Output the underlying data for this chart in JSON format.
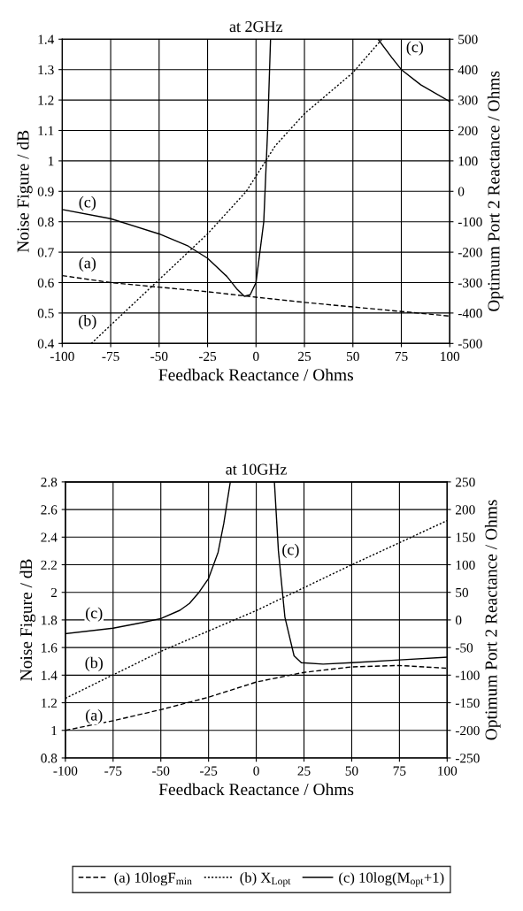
{
  "chart_data": [
    {
      "type": "line",
      "title": "at 2GHz",
      "xlabel": "Feedback Reactance / Ohms",
      "ylabel": "Noise Figure / dB",
      "y2label": "Optimum Port 2 Reactance / Ohms",
      "xlim": [
        -100,
        100
      ],
      "xticks": [
        -100,
        -75,
        -50,
        -25,
        0,
        25,
        50,
        75,
        100
      ],
      "ylim": [
        0.4,
        1.4
      ],
      "yticks": [
        0.4,
        0.5,
        0.6,
        0.7,
        0.8,
        0.9,
        1,
        1.1,
        1.2,
        1.3,
        1.4
      ],
      "y2lim": [
        -500,
        500
      ],
      "y2ticks": [
        -500,
        -400,
        -300,
        -200,
        -100,
        0,
        100,
        200,
        300,
        400,
        500
      ],
      "grid": true,
      "legend": "bottom",
      "series": [
        {
          "name": "(a) 10logF$_{min}$",
          "color": "#000000",
          "line_style": "dashed",
          "x": [
            -100,
            -75,
            -50,
            -25,
            0,
            25,
            50,
            75,
            100
          ],
          "values": [
            0.623,
            0.6,
            0.585,
            0.57,
            0.552,
            0.535,
            0.52,
            0.505,
            0.49
          ]
        },
        {
          "name": "(b) X$_{Lopt}$",
          "color": "#000000",
          "line_style": "dotted",
          "axis": "y2",
          "x": [
            -85,
            -50,
            -25,
            -5,
            0,
            6,
            10,
            25,
            50,
            65
          ],
          "values": [
            -500,
            -290,
            -140,
            0,
            50,
            110,
            150,
            255,
            390,
            500
          ]
        },
        {
          "name": "(c) 10log(M$_{opt}$+1)",
          "color": "#000000",
          "line_style": "solid",
          "x": [
            -100,
            -75,
            -50,
            -35,
            -25,
            -15,
            -10,
            -6,
            -3,
            0,
            2,
            4,
            5,
            6,
            7,
            7.5,
            30,
            63,
            70,
            75,
            85,
            100
          ],
          "values": [
            0.84,
            0.81,
            0.76,
            0.72,
            0.68,
            0.62,
            0.58,
            0.555,
            0.56,
            0.6,
            0.7,
            0.8,
            0.95,
            1.1,
            1.3,
            1.4,
            null,
            1.4,
            1.34,
            1.3,
            1.25,
            1.195
          ]
        }
      ],
      "annotations": [
        {
          "text": "(c)",
          "x": -87,
          "y": 0.86
        },
        {
          "text": "(a)",
          "x": -87,
          "y": 0.66
        },
        {
          "text": "(b)",
          "x": -87,
          "y": 0.47
        },
        {
          "text": "(c)",
          "x": 82,
          "y": 1.37
        }
      ]
    },
    {
      "type": "line",
      "title": "at 10GHz",
      "xlabel": "Feedback Reactance / Ohms",
      "ylabel": "Noise Figure / dB",
      "y2label": "Optimum Port 2 Reactance / Ohms",
      "xlim": [
        -100,
        100
      ],
      "xticks": [
        -100,
        -75,
        -50,
        -25,
        0,
        25,
        50,
        75,
        100
      ],
      "ylim": [
        0.8,
        2.8
      ],
      "yticks": [
        0.8,
        1,
        1.2,
        1.4,
        1.6,
        1.8,
        2,
        2.2,
        2.4,
        2.6,
        2.8
      ],
      "y2lim": [
        -250,
        250
      ],
      "y2ticks": [
        -250,
        -200,
        -150,
        -100,
        -50,
        0,
        50,
        100,
        150,
        200,
        250
      ],
      "grid": true,
      "series": [
        {
          "color": "#000000",
          "line_style": "dashed",
          "x": [
            -100,
            -75,
            -50,
            -25,
            0,
            25,
            50,
            75,
            100
          ],
          "values": [
            1.0,
            1.07,
            1.15,
            1.24,
            1.35,
            1.42,
            1.46,
            1.47,
            1.45
          ]
        },
        {
          "color": "#000000",
          "line_style": "dotted",
          "axis": "y2",
          "x": [
            -100,
            -50,
            0,
            50,
            100
          ],
          "values": [
            -142,
            -57,
            17,
            100,
            180
          ]
        },
        {
          "color": "#000000",
          "line_style": "solid",
          "x": [
            -100,
            -75,
            -60,
            -50,
            -40,
            -35,
            -30,
            -25,
            -20,
            -17,
            -13.6,
            0,
            9.5,
            11.6,
            15,
            19.8,
            23.6,
            35,
            50,
            75,
            100
          ],
          "values": [
            1.7,
            1.74,
            1.78,
            1.81,
            1.87,
            1.92,
            2.0,
            2.1,
            2.29,
            2.5,
            2.8,
            null,
            2.8,
            2.3,
            1.82,
            1.54,
            1.49,
            1.48,
            1.49,
            1.51,
            1.53
          ]
        }
      ],
      "annotations": [
        {
          "text": "(c)",
          "x": -85,
          "y": 1.84
        },
        {
          "text": "(b)",
          "x": -85,
          "y": 1.48
        },
        {
          "text": "(a)",
          "x": -85,
          "y": 1.1
        },
        {
          "text": "(c)",
          "x": 18,
          "y": 2.3
        }
      ]
    }
  ]
}
